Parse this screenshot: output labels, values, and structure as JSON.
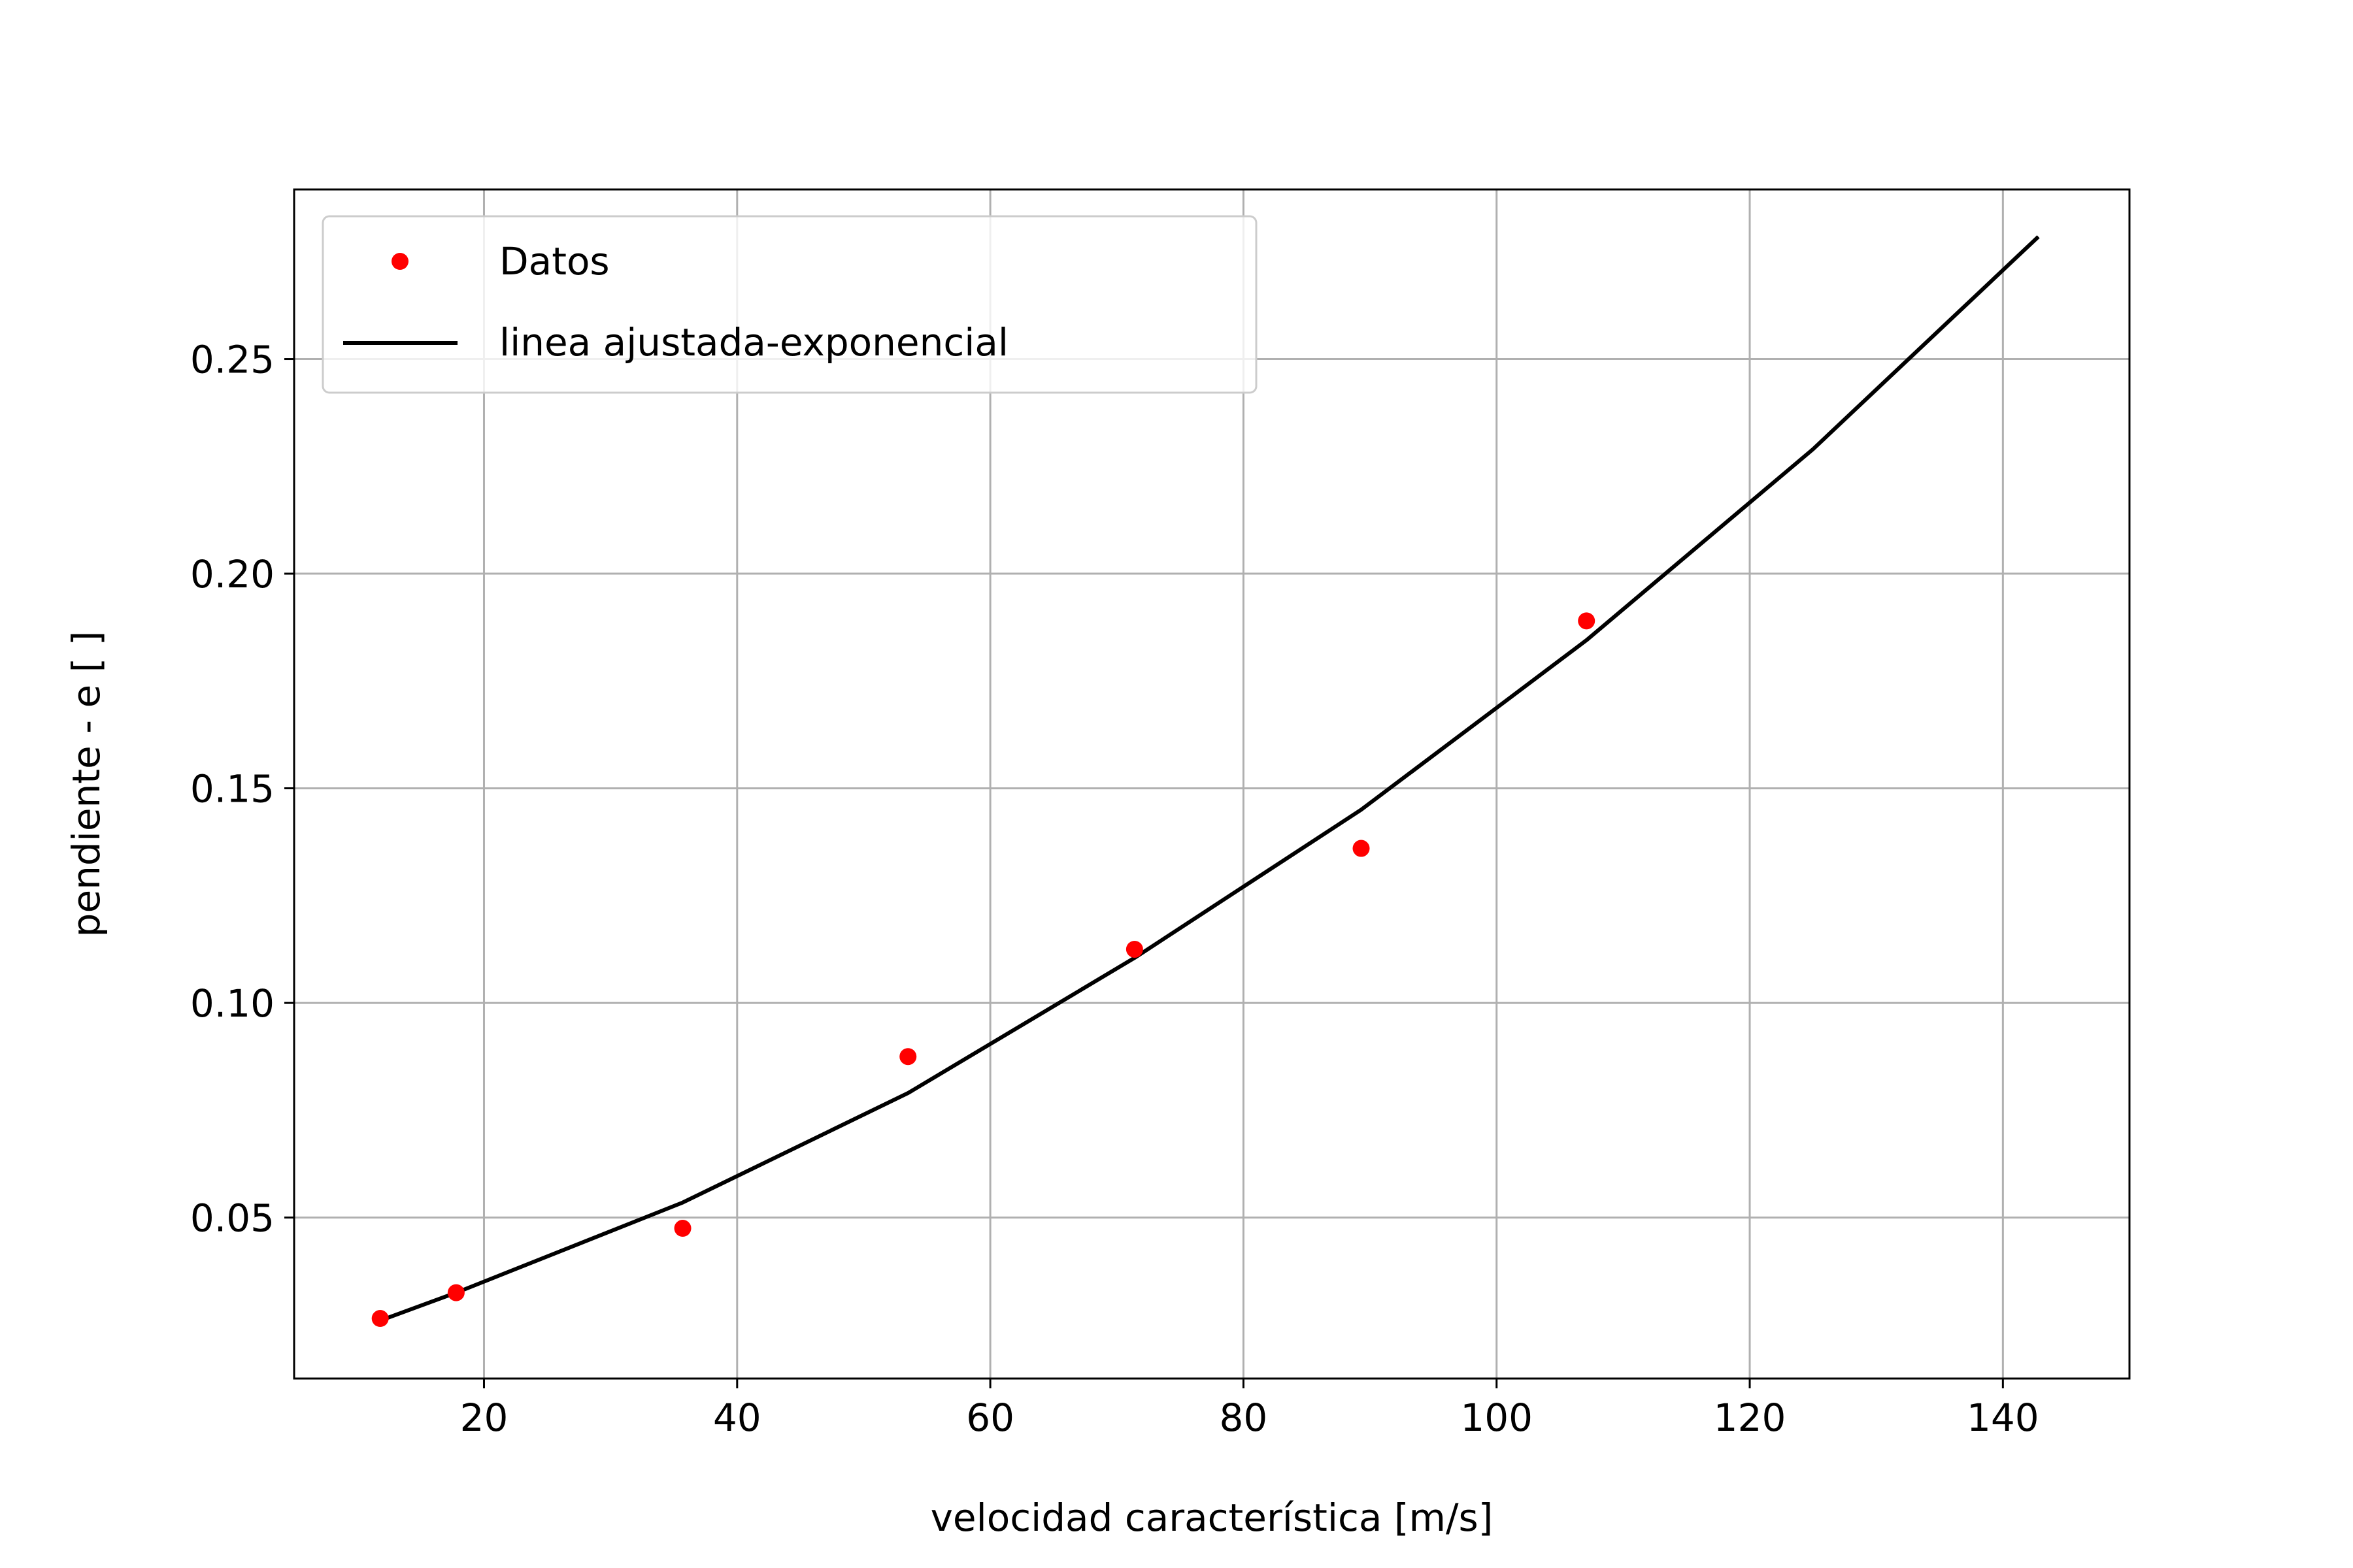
{
  "chart_data": {
    "type": "scatter+line",
    "xlabel": "velocidad característica [m/s]",
    "ylabel": "pendiente - e [ ]",
    "xlim": [
      5,
      150
    ],
    "ylim": [
      0.0125,
      0.2895
    ],
    "xticks": [
      20,
      40,
      60,
      80,
      100,
      120,
      140
    ],
    "xtick_labels": [
      "20",
      "40",
      "60",
      "80",
      "100",
      "120",
      "140"
    ],
    "yticks": [
      0.05,
      0.1,
      0.15,
      0.2,
      0.25
    ],
    "ytick_labels": [
      "0.05",
      "0.10",
      "0.15",
      "0.20",
      "0.25"
    ],
    "grid": true,
    "legend_position": "upper-left",
    "series": [
      {
        "name": "Datos",
        "kind": "scatter",
        "color": "#ff0000",
        "x": [
          11.8,
          17.8,
          35.7,
          53.5,
          71.4,
          89.3,
          107.1
        ],
        "y": [
          0.0265,
          0.0325,
          0.0475,
          0.0875,
          0.1125,
          0.136,
          0.189
        ]
      },
      {
        "name": "linea ajustada-exponencial",
        "kind": "line",
        "color": "#000000",
        "x": [
          11.8,
          17.8,
          35.7,
          53.5,
          71.4,
          89.3,
          107.1,
          125.0,
          142.8
        ],
        "y": [
          0.026,
          0.0325,
          0.0535,
          0.079,
          0.1105,
          0.145,
          0.1845,
          0.229,
          0.2785
        ]
      }
    ]
  }
}
